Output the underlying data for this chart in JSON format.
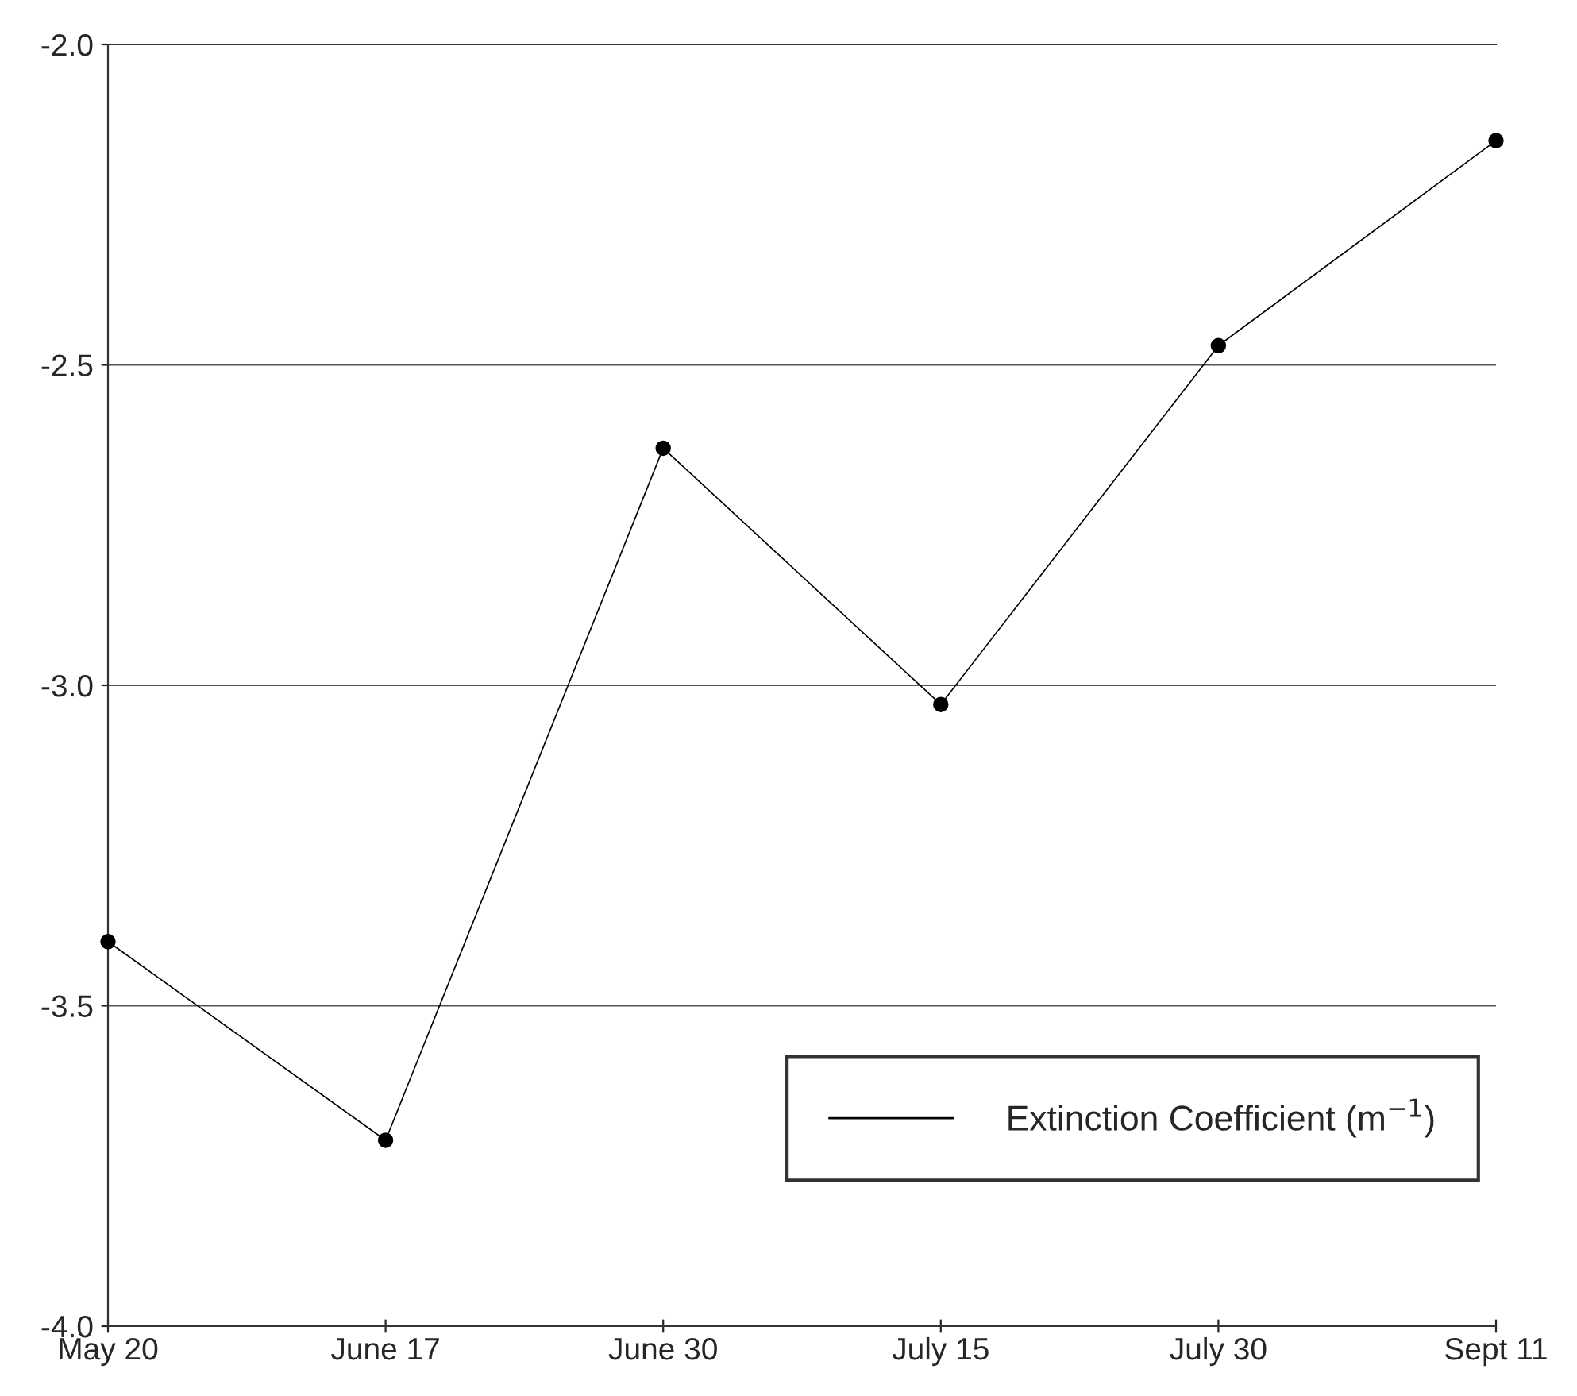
{
  "chart_data": {
    "type": "line",
    "categories": [
      "May 20",
      "June 17",
      "June 30",
      "July 15",
      "July 30",
      "Sept 11"
    ],
    "series": [
      {
        "name": "Extinction Coefficient (m$^{−1}$)",
        "color": "#000000",
        "values": [
          -3.4,
          -3.71,
          -2.63,
          -3.03,
          -2.47,
          -2.15
        ]
      }
    ],
    "ylim": [
      -4.0,
      -2.0
    ],
    "yticks": [
      {
        "value": -4.0,
        "label": "-4.0"
      },
      {
        "value": -3.5,
        "label": "-3.5"
      },
      {
        "value": -3.0,
        "label": "-3.0"
      },
      {
        "value": -2.5,
        "label": "-2.5"
      },
      {
        "value": -2.0,
        "label": "-2.0"
      }
    ],
    "grid": "y",
    "legend": "bottom right",
    "marker": "circle",
    "line_style": "solid"
  }
}
